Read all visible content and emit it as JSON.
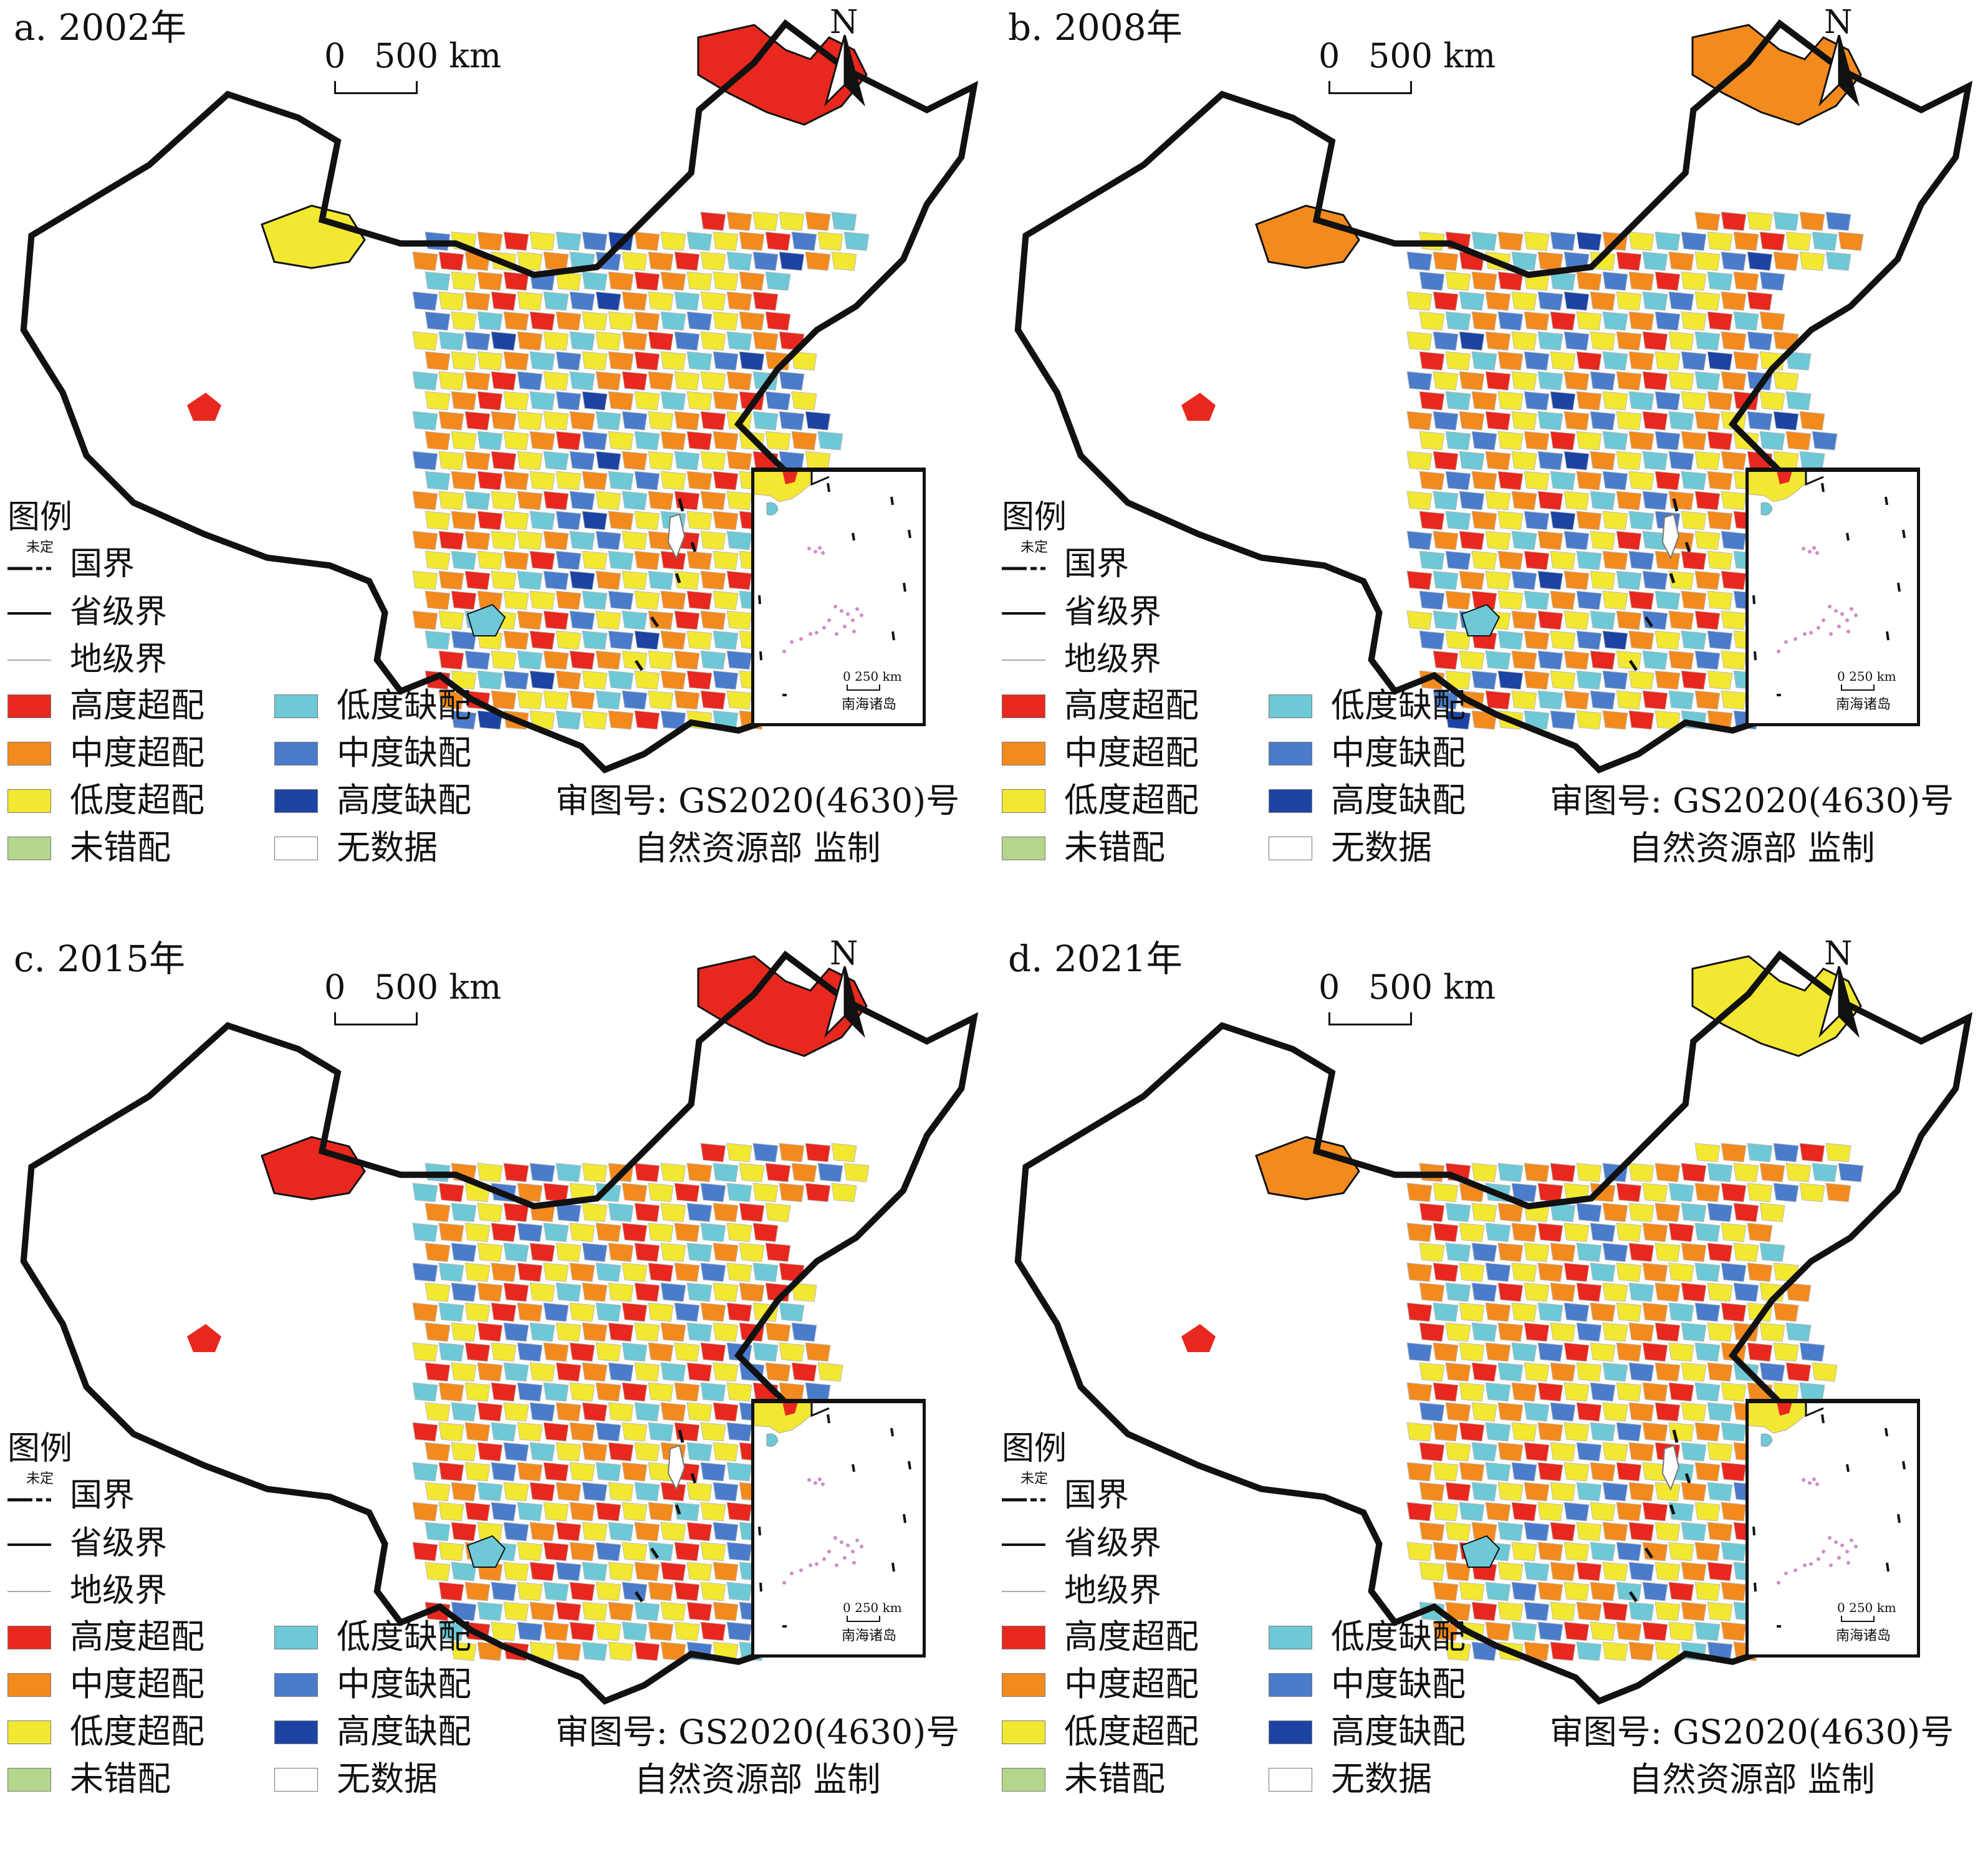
{
  "panels": [
    {
      "title": "a. 2002年",
      "scheme": 0
    },
    {
      "title": "b. 2008年",
      "scheme": 1
    },
    {
      "title": "c. 2015年",
      "scheme": 2
    },
    {
      "title": "d. 2021年",
      "scheme": 3
    }
  ],
  "scale_bar": {
    "zero": "0",
    "distance": "500 km"
  },
  "north_arrow": {
    "letter": "N"
  },
  "legend": {
    "title": "图例",
    "undecided_marker": "未定",
    "boundaries": [
      {
        "label": "国界",
        "style": "national"
      },
      {
        "label": "省级界",
        "style": "provincial"
      },
      {
        "label": "地级界",
        "style": "prefectural"
      }
    ],
    "classes": [
      {
        "label": "高度超配",
        "color": "#e8281e"
      },
      {
        "label": "中度超配",
        "color": "#f28a1e"
      },
      {
        "label": "低度超配",
        "color": "#f2e832"
      },
      {
        "label": "未错配",
        "color": "#b3d68a"
      },
      {
        "label": "低度缺配",
        "color": "#6ec8d5"
      },
      {
        "label": "中度缺配",
        "color": "#4a7ccb"
      },
      {
        "label": "高度缺配",
        "color": "#1d44a3"
      },
      {
        "label": "无数据",
        "color": "#ffffff"
      }
    ]
  },
  "approval": {
    "line1": "审图号: GS2020(4630)号",
    "line2": "自然资源部 监制"
  },
  "inset": {
    "scale_zero": "0",
    "scale_distance": "250 km",
    "name": "南海诸岛"
  }
}
